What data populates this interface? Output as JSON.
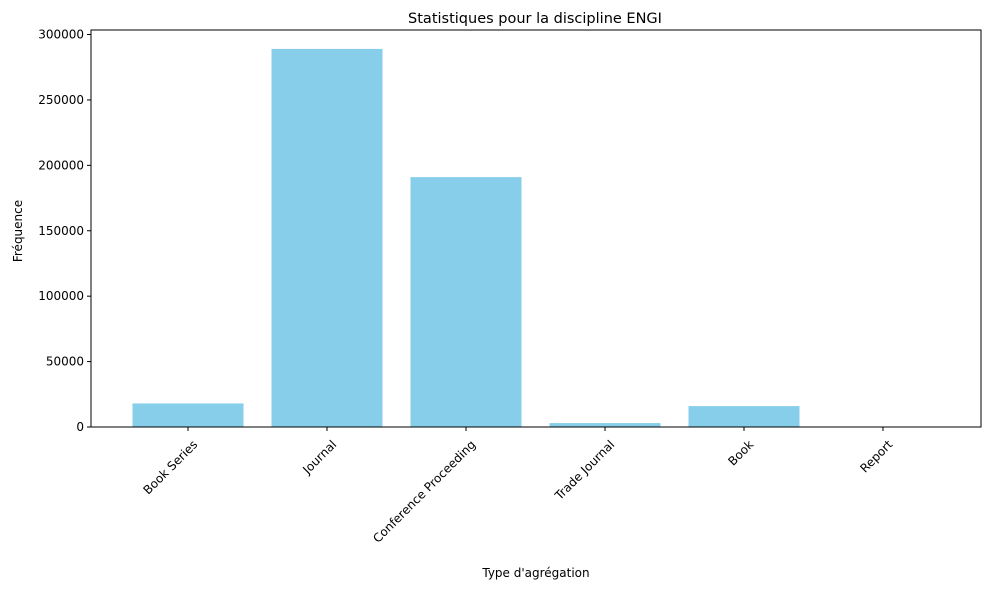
{
  "chart_data": {
    "type": "bar",
    "title": "Statistiques pour la discipline ENGI",
    "xlabel": "Type d'agrégation",
    "ylabel": "Fréquence",
    "categories": [
      "Book Series",
      "Journal",
      "Conference Proceeding",
      "Trade Journal",
      "Book",
      "Report"
    ],
    "values": [
      18000,
      289000,
      191000,
      3000,
      16000,
      0
    ],
    "ylim": [
      0,
      303450
    ],
    "yticks": [
      0,
      50000,
      100000,
      150000,
      200000,
      250000,
      300000
    ],
    "ytick_labels": [
      "0",
      "50000",
      "100000",
      "150000",
      "200000",
      "250000",
      "300000"
    ],
    "xtick_rotation_deg": 45,
    "grid": false,
    "bar_color": "#87CEEB",
    "axis_color": "#000000"
  }
}
